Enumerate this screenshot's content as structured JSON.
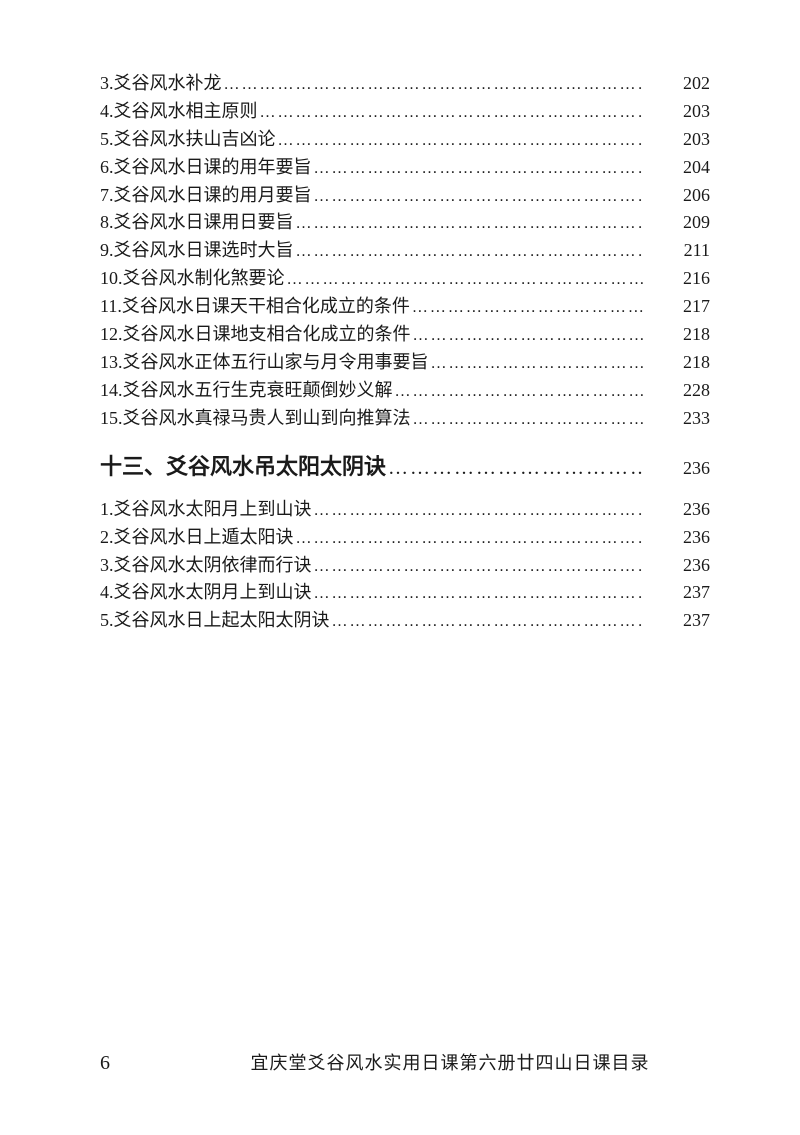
{
  "text_color": "#1a1a1a",
  "background_color": "#ffffff",
  "body_fontsize": 18,
  "heading_fontsize": 22,
  "group1": [
    {
      "num": "3.",
      "label": "爻谷风水补龙",
      "page": "202"
    },
    {
      "num": "4.",
      "label": "爻谷风水相主原则",
      "page": "203"
    },
    {
      "num": "5.",
      "label": "爻谷风水扶山吉凶论",
      "page": "203"
    },
    {
      "num": "6.",
      "label": "爻谷风水日课的用年要旨",
      "page": "204"
    },
    {
      "num": "7.",
      "label": "爻谷风水日课的用月要旨",
      "page": "206"
    },
    {
      "num": "8.",
      "label": "爻谷风水日课用日要旨",
      "page": "209"
    },
    {
      "num": "9.",
      "label": "爻谷风水日课选时大旨",
      "page": "211"
    },
    {
      "num": "10.",
      "label": "爻谷风水制化煞要论",
      "page": "216"
    },
    {
      "num": "11.",
      "label": "爻谷风水日课天干相合化成立的条件",
      "page": "217"
    },
    {
      "num": "12.",
      "label": "爻谷风水日课地支相合化成立的条件",
      "page": "218"
    },
    {
      "num": "13.",
      "label": "爻谷风水正体五行山家与月令用事要旨",
      "page": "218"
    },
    {
      "num": "14.",
      "label": "爻谷风水五行生克衰旺颠倒妙义解",
      "page": "228"
    },
    {
      "num": "15.",
      "label": "爻谷风水真禄马贵人到山到向推算法",
      "page": "233"
    }
  ],
  "section_heading": {
    "label": "十三、爻谷风水吊太阳太阴诀",
    "page": "236"
  },
  "group2": [
    {
      "num": "1.",
      "label": "爻谷风水太阳月上到山诀",
      "page": "236"
    },
    {
      "num": "2.",
      "label": "爻谷风水日上遁太阳诀",
      "page": "236"
    },
    {
      "num": "3.",
      "label": "爻谷风水太阴依律而行诀",
      "page": "236"
    },
    {
      "num": "4.",
      "label": "爻谷风水太阴月上到山诀",
      "page": "237"
    },
    {
      "num": "5.",
      "label": "爻谷风水日上起太阳太阴诀",
      "page": "237"
    }
  ],
  "footer": {
    "page_number": "6",
    "title": "宜庆堂爻谷风水实用日课第六册廿四山日课目录"
  }
}
